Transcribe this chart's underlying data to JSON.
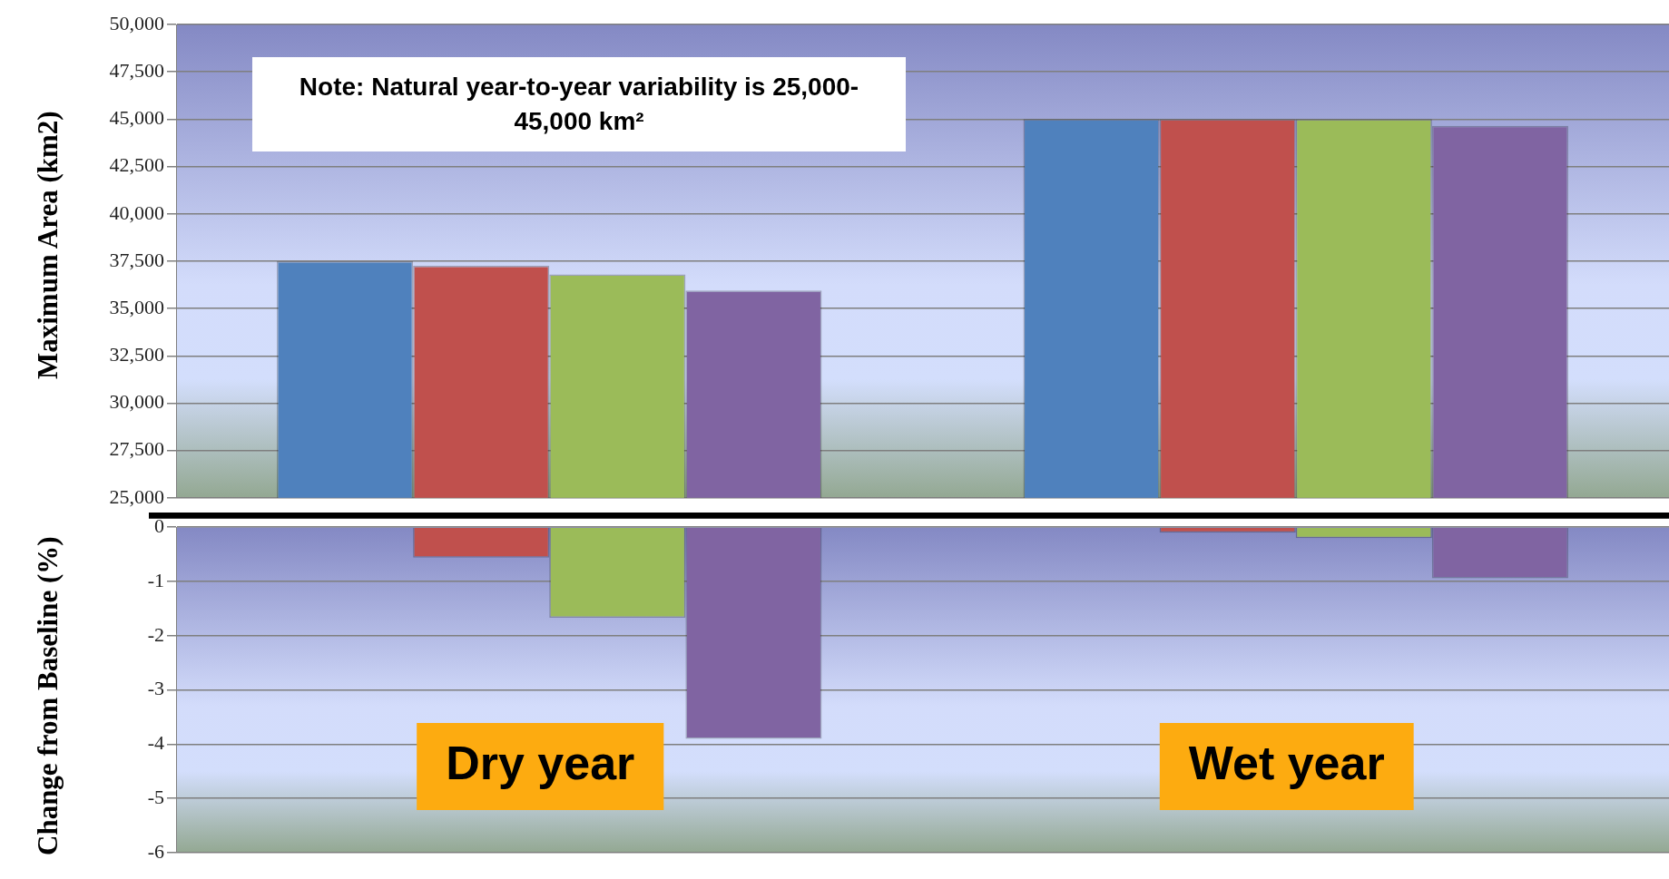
{
  "chart_data": [
    {
      "type": "bar",
      "ylabel": "Maximum Area (km2)",
      "categories": [
        null,
        null
      ],
      "grid": "y",
      "ylim": [
        25000,
        50000
      ],
      "yticks": [
        {
          "value": 25000,
          "label": "25,000"
        },
        {
          "value": 27500,
          "label": "27,500"
        },
        {
          "value": 30000,
          "label": "30,000"
        },
        {
          "value": 32500,
          "label": "32,500"
        },
        {
          "value": 35000,
          "label": "35,000"
        },
        {
          "value": 37500,
          "label": "37,500"
        },
        {
          "value": 40000,
          "label": "40,000"
        },
        {
          "value": 42500,
          "label": "42,500"
        },
        {
          "value": 45000,
          "label": "45,000"
        },
        {
          "value": 47500,
          "label": "47,500"
        },
        {
          "value": 50000,
          "label": "50,000"
        }
      ],
      "series": [
        {
          "color": "#4f81bd",
          "values": [
            37500,
            45000
          ]
        },
        {
          "color": "#c0504d",
          "values": [
            37250,
            45000
          ]
        },
        {
          "color": "#9bbb59",
          "values": [
            36800,
            45000
          ]
        },
        {
          "color": "#8064a2",
          "values": [
            35950,
            44650
          ]
        }
      ],
      "annotations": [
        "Note: Natural year-to-year variability is 25,000-45,000 km²"
      ]
    },
    {
      "type": "bar",
      "ylabel": "Change from Baseline (%)",
      "categories": [
        "Dry year",
        "Wet year"
      ],
      "grid": "y",
      "ylim": [
        -6,
        0
      ],
      "yticks": [
        0,
        -1,
        -2,
        -3,
        -4,
        -5,
        -6
      ],
      "series": [
        {
          "color": "#4f81bd",
          "values": [
            0,
            0
          ]
        },
        {
          "color": "#c0504d",
          "values": [
            -0.56,
            -0.1
          ]
        },
        {
          "color": "#9bbb59",
          "values": [
            -1.67,
            -0.2
          ]
        },
        {
          "color": "#8064a2",
          "values": [
            -3.9,
            -0.94
          ]
        }
      ]
    }
  ]
}
